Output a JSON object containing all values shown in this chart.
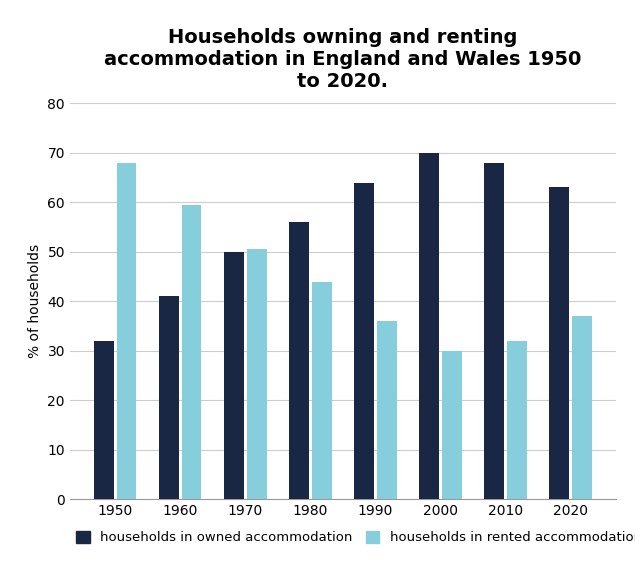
{
  "title": "Households owning and renting\naccommodation in England and Wales 1950\nto 2020.",
  "years": [
    1950,
    1960,
    1970,
    1980,
    1990,
    2000,
    2010,
    2020
  ],
  "owned": [
    32,
    41,
    50,
    56,
    64,
    70,
    68,
    63
  ],
  "rented": [
    68,
    59.5,
    50.5,
    44,
    36,
    30,
    32,
    37
  ],
  "owned_color": "#1a2744",
  "rented_color": "#87CEDC",
  "ylabel": "% of households",
  "ylim": [
    0,
    80
  ],
  "yticks": [
    0,
    10,
    20,
    30,
    40,
    50,
    60,
    70,
    80
  ],
  "legend_owned": "households in owned accommodation",
  "legend_rented": "households in rented accommodation",
  "bar_width": 0.3,
  "bar_gap": 0.05,
  "background_color": "#ffffff",
  "title_fontsize": 14,
  "axis_fontsize": 10,
  "legend_fontsize": 9.5
}
